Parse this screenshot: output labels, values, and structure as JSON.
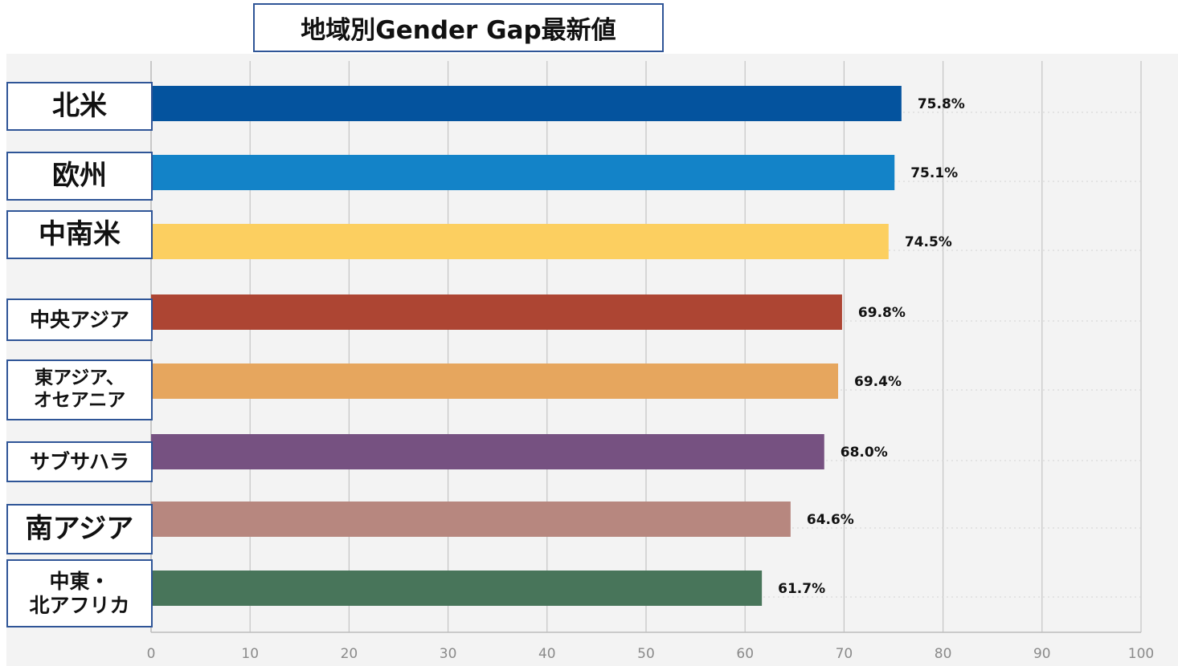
{
  "chart_data": {
    "type": "bar",
    "orientation": "horizontal",
    "title": "地域別Gender Gap最新値",
    "categories": [
      "北米",
      "欧州",
      "中南米",
      "中央アジア",
      "東アジア、\nオセアニア",
      "サブサハラ",
      "南アジア",
      "中東・\n北アフリカ"
    ],
    "values": [
      75.8,
      75.1,
      74.5,
      69.8,
      69.4,
      68.0,
      64.6,
      61.7
    ],
    "data_labels": [
      "75.8%",
      "75.1%",
      "74.5%",
      "69.8%",
      "69.4%",
      "68.0%",
      "64.6%",
      "61.7%"
    ],
    "colors": [
      "#04539e",
      "#1383c8",
      "#fccf60",
      "#ad4533",
      "#e6a65e",
      "#765181",
      "#b7877f",
      "#48755a"
    ],
    "xlim": [
      0,
      100
    ],
    "xticks": [
      "0",
      "10",
      "20",
      "30",
      "40",
      "50",
      "60",
      "70",
      "80",
      "90",
      "100"
    ],
    "grid": true,
    "legend": "none"
  }
}
